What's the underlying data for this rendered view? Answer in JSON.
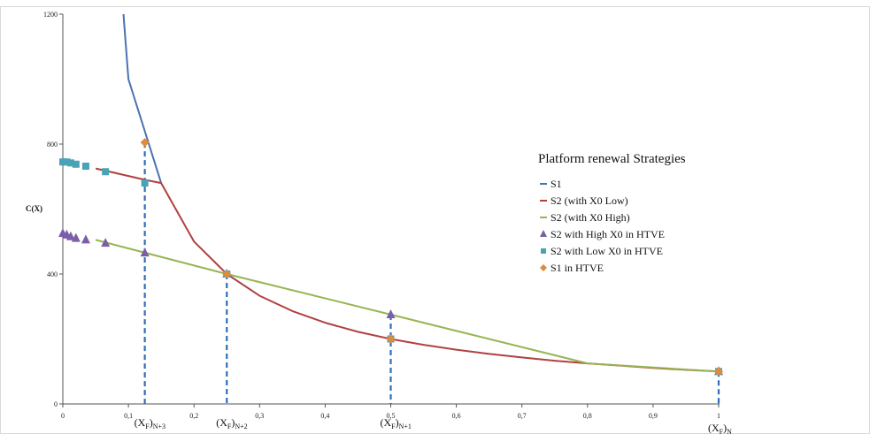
{
  "chart_data": {
    "type": "line",
    "ylabel": "C(X)",
    "xlim": [
      0,
      1
    ],
    "ylim": [
      0,
      1200
    ],
    "x_ticks": [
      0,
      0.1,
      0.2,
      0.3,
      0.4,
      0.5,
      0.6,
      0.7,
      0.8,
      0.9,
      1
    ],
    "x_tick_labels": [
      "0",
      "0,1",
      "0,2",
      "0,3",
      "0,4",
      "0,5",
      "0,6",
      "0,7",
      "0,8",
      "0,9",
      "1"
    ],
    "y_ticks": [
      0,
      400,
      800,
      1200
    ],
    "y_tick_labels": [
      "0",
      "400",
      "800",
      "1200"
    ],
    "grid": false,
    "legend": {
      "title": "Platform renewal Strategies",
      "position": "right"
    },
    "series": [
      {
        "name": "S1",
        "kind": "line",
        "color": "#4a72b0",
        "x": [
          0.0925,
          0.1,
          0.15
        ],
        "y": [
          1200,
          1000,
          680
        ]
      },
      {
        "name": "S2 (with X0 Low)",
        "kind": "line",
        "color": "#b0413e",
        "x": [
          0.05,
          0.125,
          0.15,
          0.2,
          0.25,
          0.3,
          0.35,
          0.4,
          0.45,
          0.5,
          0.55,
          0.6,
          0.65,
          0.7,
          0.75,
          0.8,
          0.85,
          0.9,
          0.95,
          1.0
        ],
        "y": [
          725,
          690,
          680,
          500,
          400,
          333,
          286,
          250,
          222,
          200,
          182,
          167,
          154,
          143,
          133,
          125,
          118,
          111,
          105,
          100
        ]
      },
      {
        "name": "S2 (with X0 High)",
        "kind": "line",
        "color": "#97b552",
        "x": [
          0.05,
          0.25,
          0.5,
          0.8,
          1.0
        ],
        "y": [
          505,
          400,
          275,
          125,
          100
        ]
      },
      {
        "name": "S2 with High X0 in HTVE",
        "kind": "triangle",
        "color": "#7b5ea7",
        "x": [
          0.0,
          0.006,
          0.012,
          0.02,
          0.035,
          0.065,
          0.125,
          0.25,
          0.5,
          1.0
        ],
        "y": [
          525,
          520,
          515,
          510,
          505,
          495,
          465,
          400,
          275,
          100
        ]
      },
      {
        "name": "S2 with Low X0  in HTVE",
        "kind": "square",
        "color": "#4aa3b5",
        "x": [
          0.0,
          0.006,
          0.012,
          0.02,
          0.035,
          0.065,
          0.125,
          0.25,
          0.5,
          1.0
        ],
        "y": [
          745,
          745,
          742,
          738,
          732,
          715,
          680,
          400,
          200,
          100
        ]
      },
      {
        "name": "S1 in HTVE",
        "kind": "diamond",
        "color": "#e08a3c",
        "x": [
          0.125,
          0.25,
          0.5,
          1.0
        ],
        "y": [
          805,
          400,
          200,
          100
        ]
      }
    ],
    "dropdowns": {
      "color": "#2f6fb7",
      "x": [
        0.125,
        0.25,
        0.5,
        1.0
      ]
    },
    "annotations": [
      {
        "x": 0.125,
        "base": "(X",
        "sub1": "F",
        "close": ")",
        "sub2": "N+3"
      },
      {
        "x": 0.25,
        "base": "(X",
        "sub1": "F",
        "close": ")",
        "sub2": "N+2"
      },
      {
        "x": 0.5,
        "base": "(X",
        "sub1": "F",
        "close": ")",
        "sub2": "N+1"
      },
      {
        "x": 1.0,
        "base": "(X",
        "sub1": "F",
        "close": ")",
        "sub2": "N"
      }
    ]
  }
}
